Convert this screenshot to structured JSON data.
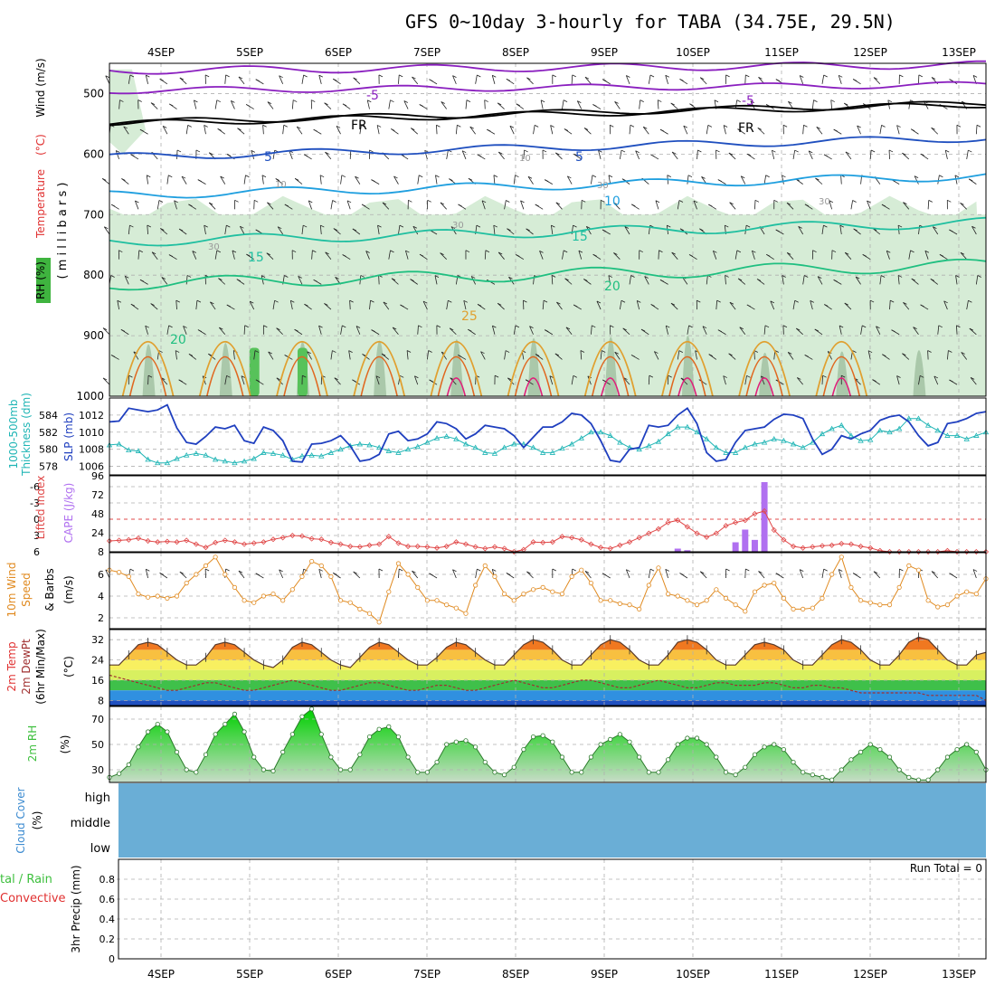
{
  "title": "GFS 0~10day 3-hourly for TABA (34.75E, 29.5N)",
  "x_tick_labels": [
    "4SEP",
    "5SEP",
    "6SEP",
    "7SEP",
    "8SEP",
    "9SEP",
    "10SEP",
    "11SEP",
    "12SEP",
    "13SEP"
  ],
  "colors": {
    "grid": "#b0b0b0",
    "rh_fill_light": "#d6ecd6",
    "rh_fill_mid": "#9fbf9f",
    "rh_fill_dark": "#7a9a7a",
    "rh_fill_green": "#57c25a",
    "wind_label": "#000000",
    "temp_label": "#e03030",
    "slp": "#1f3fbf",
    "thickness": "#1fb5b5",
    "lifted": "#e04848",
    "cape": "#b070f0",
    "wind10": "#e08a20",
    "cloud": "#6aaed6",
    "rh2m": "#3cbf3c",
    "precip_total": "#3cbf3c",
    "precip_conv": "#e03030"
  },
  "panels": {
    "upper_air": {
      "axis_label_rh": "RH (%)",
      "axis_label_temp": "Temperature",
      "axis_label_temp_unit": "(°C)",
      "axis_label_wind": "Wind (m/s)",
      "axis_label_pressure": "( m i l l i b a r s )",
      "y_ticks": [
        "500",
        "600",
        "700",
        "800",
        "900",
        "1000"
      ],
      "contour_labels": {
        "t_minus5_a": "-5",
        "t_minus5_b": "-5",
        "fr_a": "FR",
        "fr_b": "FR",
        "t5_a": "5",
        "t5_b": "5",
        "t10": "10",
        "t15_a": "15",
        "t15_b": "15",
        "t20_a": "20",
        "t20_b": "20",
        "t25": "25",
        "rh10_a": "10",
        "rh10_b": "10",
        "rh30_a": "30",
        "rh30_b": "30",
        "rh30_c": "30",
        "rh30_d": "30"
      }
    },
    "slp_thickness": {
      "label_thickness": "1000-500mb",
      "label_thickness2": "Thickness (dm)",
      "label_slp": "SLP (mb)",
      "left_ticks": [
        "584",
        "582",
        "580",
        "578"
      ],
      "right_ticks": [
        "1012",
        "1010",
        "1008",
        "1006"
      ]
    },
    "cape_li": {
      "label_li": "Lifted Index",
      "label_cape": "CAPE (J/kg)",
      "left_ticks": [
        "-6",
        "-3",
        "0",
        "3",
        "6"
      ],
      "right_ticks": [
        "96",
        "72",
        "48",
        "24",
        "8"
      ]
    },
    "wind10m": {
      "label_a": "10m Wind",
      "label_b": "Speed",
      "label_c": "& Barbs",
      "unit": "(m/s)",
      "y_ticks": [
        "6",
        "4",
        "2"
      ]
    },
    "temp2m": {
      "label_a": "2m Temp",
      "label_b": "2m DewPt",
      "label_c": "(6hr Min/Max)",
      "unit": "(°C)",
      "y_ticks": [
        "32",
        "24",
        "16",
        "8"
      ]
    },
    "rh2m": {
      "label": "2m RH",
      "unit": "(%)",
      "y_ticks": [
        "70",
        "50",
        "30"
      ]
    },
    "cloud": {
      "label": "Cloud Cover",
      "unit": "(%)",
      "levels": [
        "high",
        "middle",
        "low"
      ]
    },
    "precip": {
      "label_a": "tal / Rain",
      "label_b": "Convective",
      "label_c": "3hr Precip (mm)",
      "run_total": "Run Total = 0",
      "y_ticks": [
        "0.8",
        "0.6",
        "0.4",
        "0.2",
        "0"
      ]
    }
  },
  "chart_data": [
    {
      "type": "line",
      "name": "SLP (mb)",
      "x_unit": "3-hourly steps starting 3 Sep 21Z",
      "ylim": [
        1005,
        1014
      ],
      "values": [
        1011.2,
        1011.3,
        1012.8,
        1012.6,
        1012.4,
        1012.6,
        1013.2,
        1010.5,
        1008.8,
        1008.6,
        1009.5,
        1010.6,
        1010.4,
        1010.8,
        1009.0,
        1008.7,
        1010.6,
        1010.2,
        1009.0,
        1006.6,
        1006.5,
        1008.6,
        1008.7,
        1009.0,
        1009.6,
        1008.4,
        1006.6,
        1006.8,
        1007.4,
        1009.8,
        1010.1,
        1009.0,
        1009.2,
        1009.8,
        1011.2,
        1011.0,
        1010.4,
        1009.2,
        1009.8,
        1010.8,
        1010.6,
        1010.4,
        1009.6,
        1008.2,
        1009.4,
        1010.6,
        1010.6,
        1011.2,
        1012.2,
        1012.0,
        1011.0,
        1009.0,
        1006.7,
        1006.5,
        1008.0,
        1008.2,
        1010.8,
        1010.6,
        1010.8,
        1012.0,
        1012.8,
        1011.0,
        1007.6,
        1006.6,
        1006.8,
        1008.8,
        1010.2,
        1010.4,
        1010.6,
        1011.5,
        1012.1,
        1012.0,
        1011.6,
        1009.2,
        1007.4,
        1008.0,
        1009.6,
        1009.2,
        1009.8,
        1010.2,
        1011.4,
        1011.8,
        1012.0,
        1011.2,
        1009.6,
        1008.4,
        1008.8,
        1011.0,
        1011.2,
        1011.6,
        1012.2,
        1012.4
      ]
    },
    {
      "type": "line",
      "name": "1000-500mb Thickness (dm)",
      "ylim": [
        577,
        586
      ],
      "values": [
        580.5,
        580.6,
        579.9,
        579.8,
        578.8,
        578.4,
        578.4,
        578.9,
        579.3,
        579.5,
        579.3,
        578.8,
        578.6,
        578.4,
        578.6,
        578.9,
        579.6,
        579.5,
        579.3,
        578.8,
        579.2,
        579.3,
        579.2,
        579.6,
        580.0,
        580.4,
        580.6,
        580.5,
        580.2,
        579.8,
        579.6,
        580.0,
        580.3,
        580.8,
        581.3,
        581.5,
        581.2,
        580.6,
        580.2,
        579.6,
        579.5,
        580.2,
        580.6,
        580.6,
        580.2,
        579.6,
        579.6,
        580.1,
        580.6,
        581.3,
        582.0,
        582.0,
        581.6,
        580.8,
        580.2,
        580.0,
        580.4,
        580.9,
        581.8,
        582.6,
        582.6,
        582.0,
        581.2,
        580.2,
        579.6,
        579.6,
        580.2,
        580.6,
        580.8,
        581.2,
        581.0,
        580.6,
        580.2,
        580.8,
        581.8,
        582.4,
        582.8,
        581.6,
        581.0,
        581.1,
        582.2,
        582.0,
        582.4,
        583.6,
        583.6,
        582.8,
        582.2,
        581.6,
        581.6,
        581.2,
        581.6,
        582.0
      ]
    },
    {
      "type": "line",
      "name": "Lifted Index",
      "ylim": [
        6,
        -8
      ],
      "values": [
        4.0,
        3.9,
        3.8,
        3.5,
        4.0,
        4.2,
        4.1,
        4.2,
        3.9,
        4.6,
        5.2,
        4.3,
        3.9,
        4.2,
        4.6,
        4.4,
        4.2,
        3.7,
        3.4,
        3.0,
        3.1,
        3.6,
        3.7,
        4.3,
        4.6,
        5.0,
        5.1,
        4.8,
        4.6,
        3.2,
        4.4,
        5.0,
        5.0,
        5.1,
        5.3,
        5.0,
        4.2,
        4.6,
        5.1,
        5.4,
        5.1,
        5.4,
        6.0,
        5.6,
        4.2,
        4.3,
        4.2,
        3.2,
        3.4,
        3.8,
        4.6,
        5.2,
        5.4,
        4.8,
        4.2,
        3.4,
        2.6,
        1.8,
        0.6,
        0.2,
        1.4,
        2.6,
        3.3,
        2.6,
        1.2,
        0.6,
        0.2,
        -1.0,
        -1.5,
        2.0,
        3.8,
        5.0,
        5.3,
        5.1,
        4.9,
        4.8,
        4.5,
        4.6,
        5.0,
        5.3,
        5.8,
        6.0,
        6.0,
        6.0,
        6.0,
        6.0,
        6.0,
        5.8,
        6.0,
        6.0,
        6.0,
        6.0
      ]
    },
    {
      "type": "bar",
      "name": "CAPE (J/kg)",
      "ylim": [
        0,
        96
      ],
      "bars": [
        {
          "step": 59,
          "value": 4
        },
        {
          "step": 60,
          "value": 2
        },
        {
          "step": 65,
          "value": 12
        },
        {
          "step": 66,
          "value": 28
        },
        {
          "step": 67,
          "value": 15
        },
        {
          "step": 68,
          "value": 88
        }
      ]
    },
    {
      "type": "line",
      "name": "10m Wind Speed (m/s)",
      "ylim": [
        1,
        8
      ],
      "values": [
        6.4,
        6.2,
        5.8,
        4.2,
        3.9,
        4.0,
        3.8,
        4.0,
        5.2,
        6.0,
        6.8,
        7.6,
        6.0,
        4.8,
        3.6,
        3.4,
        4.0,
        4.2,
        3.6,
        4.6,
        5.8,
        7.2,
        6.8,
        5.8,
        3.6,
        3.4,
        2.8,
        2.4,
        1.6,
        4.4,
        7.0,
        6.0,
        4.8,
        3.6,
        3.6,
        3.2,
        2.9,
        2.4,
        5.0,
        6.8,
        5.8,
        4.2,
        3.6,
        4.2,
        4.6,
        4.8,
        4.4,
        4.2,
        5.8,
        6.4,
        5.2,
        3.6,
        3.6,
        3.3,
        3.2,
        2.8,
        5.0,
        6.6,
        4.2,
        4.0,
        3.6,
        3.2,
        3.6,
        4.6,
        3.8,
        3.2,
        2.6,
        4.4,
        5.0,
        5.2,
        3.8,
        2.8,
        2.8,
        2.9,
        3.8,
        6.0,
        7.6,
        4.8,
        3.6,
        3.4,
        3.2,
        3.2,
        4.8,
        6.8,
        6.4,
        3.6,
        3.0,
        3.2,
        4.0,
        4.4,
        4.2,
        5.6
      ]
    },
    {
      "type": "area",
      "name": "2m Temp (°C)",
      "ylim": [
        6,
        36
      ],
      "values": [
        22,
        22,
        26,
        30,
        31,
        30,
        27,
        24,
        22,
        22,
        25,
        30,
        31,
        30,
        27,
        24,
        22,
        21,
        24,
        29,
        31,
        30,
        27,
        24,
        22,
        21,
        25,
        29,
        31,
        30,
        27,
        24,
        22,
        22,
        25,
        29,
        31,
        30,
        27,
        24,
        22,
        22,
        26,
        30,
        32,
        31,
        28,
        24,
        22,
        22,
        26,
        30,
        32,
        31,
        28,
        24,
        22,
        22,
        26,
        31,
        32,
        31,
        28,
        24,
        22,
        22,
        26,
        30,
        31,
        30,
        28,
        24,
        22,
        22,
        26,
        30,
        32,
        31,
        28,
        24,
        22,
        22,
        26,
        31,
        33,
        32,
        28,
        24,
        22,
        22,
        26,
        27
      ]
    },
    {
      "type": "line",
      "name": "2m DewPt (°C)",
      "ylim": [
        6,
        36
      ],
      "values": [
        18,
        17,
        16,
        15,
        14,
        13,
        12,
        12,
        13,
        14,
        15,
        15,
        14,
        13,
        12,
        12,
        13,
        14,
        15,
        16,
        15,
        14,
        13,
        12,
        12,
        13,
        14,
        15,
        15,
        14,
        13,
        12,
        12,
        13,
        14,
        14,
        13,
        12,
        12,
        13,
        14,
        15,
        16,
        15,
        14,
        13,
        13,
        14,
        15,
        16,
        16,
        15,
        14,
        13,
        13,
        14,
        15,
        16,
        15,
        14,
        13,
        13,
        14,
        15,
        15,
        14,
        14,
        14,
        15,
        15,
        14,
        13,
        13,
        14,
        14,
        13,
        13,
        12,
        11,
        11,
        11,
        11,
        11,
        11,
        11,
        10,
        10,
        10,
        10,
        10,
        10,
        8
      ]
    },
    {
      "type": "area",
      "name": "2m RH (%)",
      "ylim": [
        20,
        80
      ],
      "values": [
        24,
        27,
        34,
        48,
        60,
        66,
        60,
        44,
        30,
        28,
        42,
        58,
        66,
        74,
        60,
        40,
        30,
        29,
        44,
        58,
        72,
        78,
        58,
        40,
        30,
        30,
        42,
        56,
        62,
        64,
        56,
        40,
        28,
        28,
        36,
        50,
        52,
        53,
        48,
        36,
        28,
        26,
        32,
        46,
        56,
        57,
        52,
        40,
        28,
        28,
        40,
        50,
        54,
        58,
        52,
        40,
        28,
        28,
        38,
        50,
        55,
        55,
        50,
        40,
        28,
        26,
        32,
        42,
        48,
        50,
        46,
        36,
        28,
        26,
        24,
        22,
        30,
        38,
        44,
        50,
        46,
        40,
        30,
        24,
        22,
        22,
        30,
        40,
        46,
        50,
        44,
        30
      ]
    },
    {
      "type": "bar",
      "name": "3hr Precip (mm)",
      "ylim": [
        0,
        1
      ],
      "values": []
    }
  ]
}
